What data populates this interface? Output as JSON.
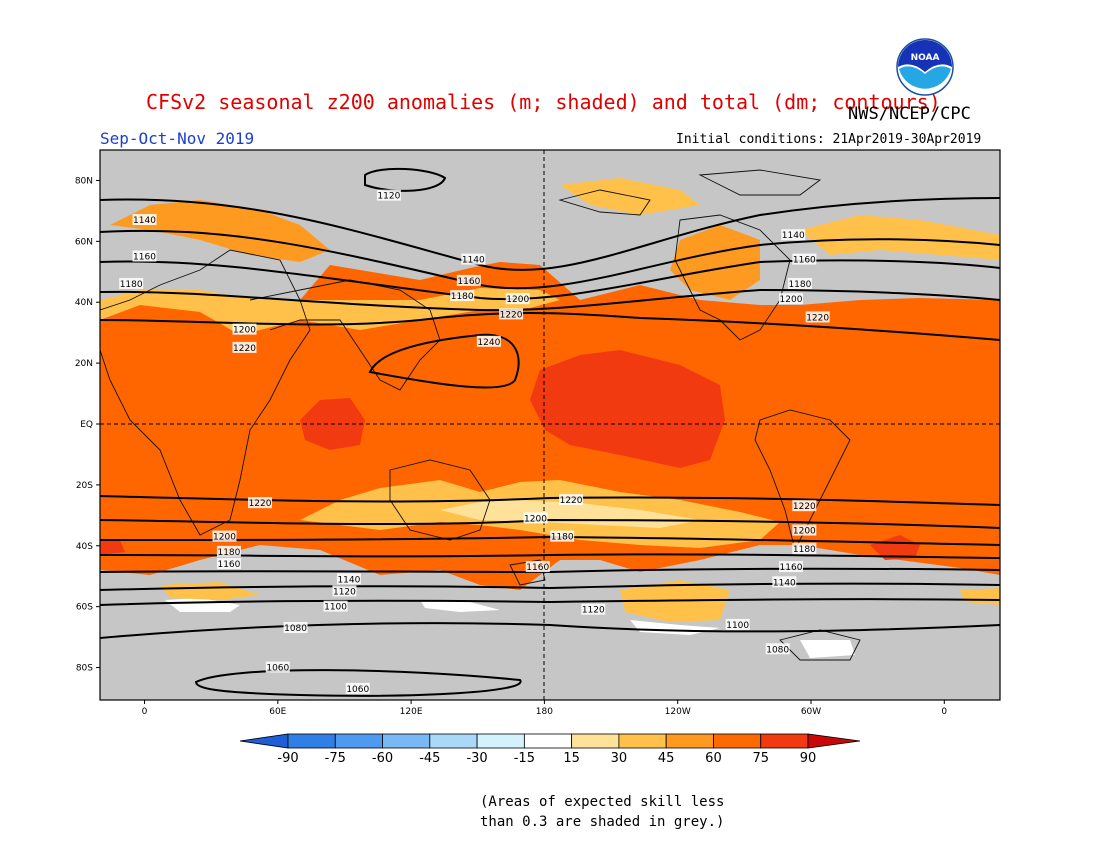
{
  "header": {
    "title": "CFSv2 seasonal z200 anomalies (m; shaded) and total (dm; contours)",
    "agency": "NWS/NCEP/CPC",
    "season": "Sep-Oct-Nov 2019",
    "initial_conditions": "Initial conditions: 21Apr2019-30Apr2019",
    "logo_text": "NOAA"
  },
  "map": {
    "lat_labels": [
      "80N",
      "60N",
      "40N",
      "20N",
      "EQ",
      "20S",
      "40S",
      "60S",
      "80S"
    ],
    "lon_labels": [
      "0",
      "60E",
      "120E",
      "180",
      "120W",
      "60W",
      "0"
    ],
    "contour_labels": [
      {
        "text": "1140",
        "lat": 67,
        "lon": 0
      },
      {
        "text": "1160",
        "lat": 55,
        "lon": 0
      },
      {
        "text": "1180",
        "lat": 46,
        "lon": -6
      },
      {
        "text": "1200",
        "lat": 31,
        "lon": 45
      },
      {
        "text": "1220",
        "lat": 25,
        "lon": 45
      },
      {
        "text": "1120",
        "lat": 75,
        "lon": 110
      },
      {
        "text": "1140",
        "lat": 54,
        "lon": 148
      },
      {
        "text": "1160",
        "lat": 47,
        "lon": 146
      },
      {
        "text": "1180",
        "lat": 42,
        "lon": 143
      },
      {
        "text": "1200",
        "lat": 41,
        "lon": 168
      },
      {
        "text": "1220",
        "lat": 36,
        "lon": 165
      },
      {
        "text": "1240",
        "lat": 27,
        "lon": 155
      },
      {
        "text": "1140",
        "lat": 62,
        "lon": -68
      },
      {
        "text": "1160",
        "lat": 54,
        "lon": -63
      },
      {
        "text": "1180",
        "lat": 46,
        "lon": -65
      },
      {
        "text": "1200",
        "lat": 41,
        "lon": -69
      },
      {
        "text": "1220",
        "lat": 35,
        "lon": -57
      },
      {
        "text": "1220",
        "lat": -26,
        "lon": 52
      },
      {
        "text": "1200",
        "lat": -37,
        "lon": 36
      },
      {
        "text": "1180",
        "lat": -42,
        "lon": 38
      },
      {
        "text": "1160",
        "lat": -46,
        "lon": 38
      },
      {
        "text": "1220",
        "lat": -25,
        "lon": -168
      },
      {
        "text": "1200",
        "lat": -31,
        "lon": 176
      },
      {
        "text": "1180",
        "lat": -37,
        "lon": -172
      },
      {
        "text": "1160",
        "lat": -47,
        "lon": 177
      },
      {
        "text": "1140",
        "lat": -51,
        "lon": 92
      },
      {
        "text": "1120",
        "lat": -55,
        "lon": 90
      },
      {
        "text": "1100",
        "lat": -60,
        "lon": 86
      },
      {
        "text": "1080",
        "lat": -67,
        "lon": 68
      },
      {
        "text": "1060",
        "lat": -80,
        "lon": 60
      },
      {
        "text": "1060",
        "lat": -87,
        "lon": 96
      },
      {
        "text": "1120",
        "lat": -61,
        "lon": -158
      },
      {
        "text": "1100",
        "lat": -66,
        "lon": -93
      },
      {
        "text": "1080",
        "lat": -74,
        "lon": -75
      },
      {
        "text": "1220",
        "lat": -27,
        "lon": -63
      },
      {
        "text": "1200",
        "lat": -35,
        "lon": -63
      },
      {
        "text": "1180",
        "lat": -41,
        "lon": -63
      },
      {
        "text": "1160",
        "lat": -47,
        "lon": -69
      },
      {
        "text": "1140",
        "lat": -52,
        "lon": -72
      }
    ]
  },
  "colorbar": {
    "ticks": [
      "-90",
      "-75",
      "-60",
      "-45",
      "-30",
      "-15",
      "15",
      "30",
      "45",
      "60",
      "75",
      "90"
    ],
    "colors": [
      "#1e5fd8",
      "#2f7fe6",
      "#4d9af0",
      "#78b9f5",
      "#a9d8f8",
      "#d4f2fb",
      "#ffffff",
      "#ffe29a",
      "#ffc14a",
      "#ff9a20",
      "#ff6a00",
      "#f23a10",
      "#c80808"
    ]
  },
  "note": {
    "line1": "(Areas of expected skill less",
    "line2": "than 0.3 are shaded in grey.)"
  }
}
